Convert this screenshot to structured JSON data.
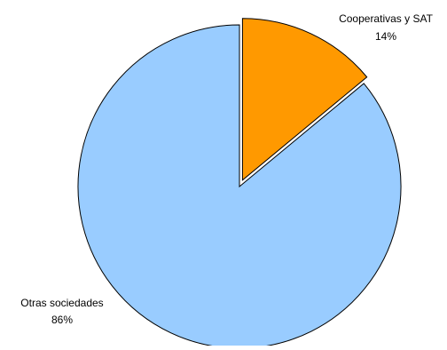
{
  "chart_data": {
    "type": "pie",
    "slices": [
      {
        "label": "Cooperativas y SAT",
        "value": 14,
        "value_label": "14%",
        "color": "#ff9900",
        "exploded": true
      },
      {
        "label": "Otras sociedades",
        "value": 86,
        "value_label": "86%",
        "color": "#99ccff",
        "exploded": false
      }
    ],
    "outline_color": "#000000",
    "legend": "none"
  }
}
